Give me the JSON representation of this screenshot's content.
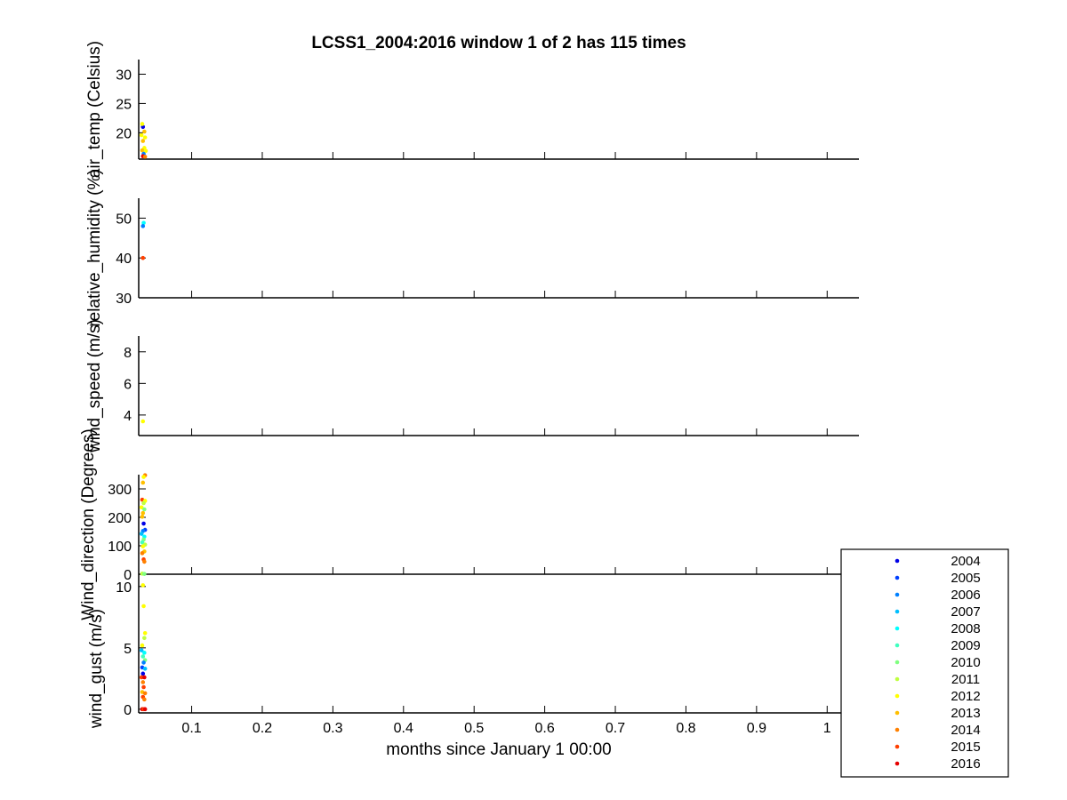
{
  "title": "LCSS1_2004:2016 window 1 of 2 has 115 times",
  "xlabel": "months since January 1 00:00",
  "x_ticks": [
    "0.1",
    "0.2",
    "0.3",
    "0.4",
    "0.5",
    "0.6",
    "0.7",
    "0.8",
    "0.9",
    "1"
  ],
  "legend": {
    "years": [
      "2004",
      "2005",
      "2006",
      "2007",
      "2008",
      "2009",
      "2010",
      "2011",
      "2012",
      "2013",
      "2014",
      "2015",
      "2016"
    ],
    "colors": [
      "#0000e6",
      "#0040ff",
      "#0080ff",
      "#00bfff",
      "#00ffff",
      "#40ffbf",
      "#80ff80",
      "#bfff40",
      "#ffff00",
      "#ffbf00",
      "#ff8000",
      "#ff4000",
      "#e60000"
    ]
  },
  "chart_data": [
    {
      "type": "scatter",
      "ylabel": "air_temp (Celsius)",
      "xlim": [
        0.025,
        1.045
      ],
      "ylim": [
        15.5,
        32.5
      ],
      "y_ticks": [
        "20",
        "25",
        "30"
      ],
      "points": [
        {
          "x": 0.031,
          "y": 21.0,
          "year": "2004"
        },
        {
          "x": 0.03,
          "y": 21.5,
          "year": "2012"
        },
        {
          "x": 0.033,
          "y": 20.2,
          "year": "2013"
        },
        {
          "x": 0.029,
          "y": 19.6,
          "year": "2012"
        },
        {
          "x": 0.034,
          "y": 19.2,
          "year": "2012"
        },
        {
          "x": 0.031,
          "y": 18.6,
          "year": "2013"
        },
        {
          "x": 0.033,
          "y": 17.4,
          "year": "2012"
        },
        {
          "x": 0.03,
          "y": 17.0,
          "year": "2013"
        },
        {
          "x": 0.035,
          "y": 16.9,
          "year": "2012"
        },
        {
          "x": 0.032,
          "y": 16.4,
          "year": "2006"
        },
        {
          "x": 0.031,
          "y": 16.0,
          "year": "2016"
        },
        {
          "x": 0.034,
          "y": 15.9,
          "year": "2014"
        }
      ]
    },
    {
      "type": "scatter",
      "ylabel": "relative_humidity (%)",
      "xlim": [
        0.025,
        1.045
      ],
      "ylim": [
        30,
        55
      ],
      "y_ticks": [
        "30",
        "40",
        "50"
      ],
      "points": [
        {
          "x": 0.032,
          "y": 48.8,
          "year": "2008"
        },
        {
          "x": 0.031,
          "y": 48.0,
          "year": "2006"
        },
        {
          "x": 0.031,
          "y": 40.0,
          "year": "2015"
        }
      ]
    },
    {
      "type": "scatter",
      "ylabel": "wind_speed (m/s)",
      "xlim": [
        0.025,
        1.045
      ],
      "ylim": [
        2.7,
        9.0
      ],
      "y_ticks": [
        "4",
        "6",
        "8"
      ],
      "points": [
        {
          "x": 0.031,
          "y": 3.6,
          "year": "2012"
        }
      ]
    },
    {
      "type": "scatter",
      "ylabel": "Wind_direction (Degrees)",
      "xlim": [
        0.025,
        1.045
      ],
      "ylim": [
        0,
        350
      ],
      "y_ticks": [
        "0",
        "100",
        "200",
        "300"
      ],
      "points": [
        {
          "x": 0.034,
          "y": 348,
          "year": "2014"
        },
        {
          "x": 0.032,
          "y": 342,
          "year": "2012"
        },
        {
          "x": 0.031,
          "y": 322,
          "year": "2013"
        },
        {
          "x": 0.03,
          "y": 262,
          "year": "2015"
        },
        {
          "x": 0.034,
          "y": 258,
          "year": "2012"
        },
        {
          "x": 0.032,
          "y": 250,
          "year": "2011"
        },
        {
          "x": 0.029,
          "y": 235,
          "year": "2012"
        },
        {
          "x": 0.033,
          "y": 228,
          "year": "2010"
        },
        {
          "x": 0.031,
          "y": 215,
          "year": "2013"
        },
        {
          "x": 0.03,
          "y": 202,
          "year": "2013"
        },
        {
          "x": 0.032,
          "y": 178,
          "year": "2004"
        },
        {
          "x": 0.034,
          "y": 156,
          "year": "2005"
        },
        {
          "x": 0.031,
          "y": 152,
          "year": "2006"
        },
        {
          "x": 0.029,
          "y": 142,
          "year": "2007"
        },
        {
          "x": 0.033,
          "y": 132,
          "year": "2008"
        },
        {
          "x": 0.032,
          "y": 122,
          "year": "2010"
        },
        {
          "x": 0.03,
          "y": 112,
          "year": "2009"
        },
        {
          "x": 0.034,
          "y": 104,
          "year": "2011"
        },
        {
          "x": 0.031,
          "y": 98,
          "year": "2012"
        },
        {
          "x": 0.033,
          "y": 80,
          "year": "2013"
        },
        {
          "x": 0.03,
          "y": 74,
          "year": "2014"
        },
        {
          "x": 0.032,
          "y": 52,
          "year": "2015"
        },
        {
          "x": 0.033,
          "y": 44,
          "year": "2014"
        },
        {
          "x": 0.03,
          "y": 2,
          "year": "2011"
        },
        {
          "x": 0.033,
          "y": 1,
          "year": "2010"
        }
      ]
    },
    {
      "type": "scatter",
      "ylabel": "wind_gust (m/s)",
      "xlim": [
        0.025,
        1.045
      ],
      "ylim": [
        -0.3,
        11
      ],
      "y_ticks": [
        "0",
        "5",
        "10"
      ],
      "points": [
        {
          "x": 0.031,
          "y": 10.1,
          "year": "2012"
        },
        {
          "x": 0.032,
          "y": 8.4,
          "year": "2012"
        },
        {
          "x": 0.034,
          "y": 6.2,
          "year": "2012"
        },
        {
          "x": 0.033,
          "y": 5.8,
          "year": "2011"
        },
        {
          "x": 0.03,
          "y": 5.2,
          "year": "2012"
        },
        {
          "x": 0.029,
          "y": 4.8,
          "year": "2007"
        },
        {
          "x": 0.033,
          "y": 4.6,
          "year": "2008"
        },
        {
          "x": 0.031,
          "y": 4.3,
          "year": "2009"
        },
        {
          "x": 0.034,
          "y": 4.0,
          "year": "2010"
        },
        {
          "x": 0.032,
          "y": 3.8,
          "year": "2006"
        },
        {
          "x": 0.03,
          "y": 3.4,
          "year": "2005"
        },
        {
          "x": 0.034,
          "y": 3.3,
          "year": "2007"
        },
        {
          "x": 0.031,
          "y": 2.9,
          "year": "2004"
        },
        {
          "x": 0.029,
          "y": 2.6,
          "year": "2015"
        },
        {
          "x": 0.033,
          "y": 2.6,
          "year": "2016"
        },
        {
          "x": 0.031,
          "y": 2.2,
          "year": "2014"
        },
        {
          "x": 0.032,
          "y": 1.8,
          "year": "2015"
        },
        {
          "x": 0.03,
          "y": 1.4,
          "year": "2013"
        },
        {
          "x": 0.034,
          "y": 1.3,
          "year": "2014"
        },
        {
          "x": 0.031,
          "y": 1.0,
          "year": "2015"
        },
        {
          "x": 0.033,
          "y": 0.8,
          "year": "2014"
        },
        {
          "x": 0.03,
          "y": 0.0,
          "year": "2016"
        },
        {
          "x": 0.032,
          "y": 0.0,
          "year": "2015"
        },
        {
          "x": 0.034,
          "y": 0.0,
          "year": "2016"
        }
      ]
    }
  ]
}
